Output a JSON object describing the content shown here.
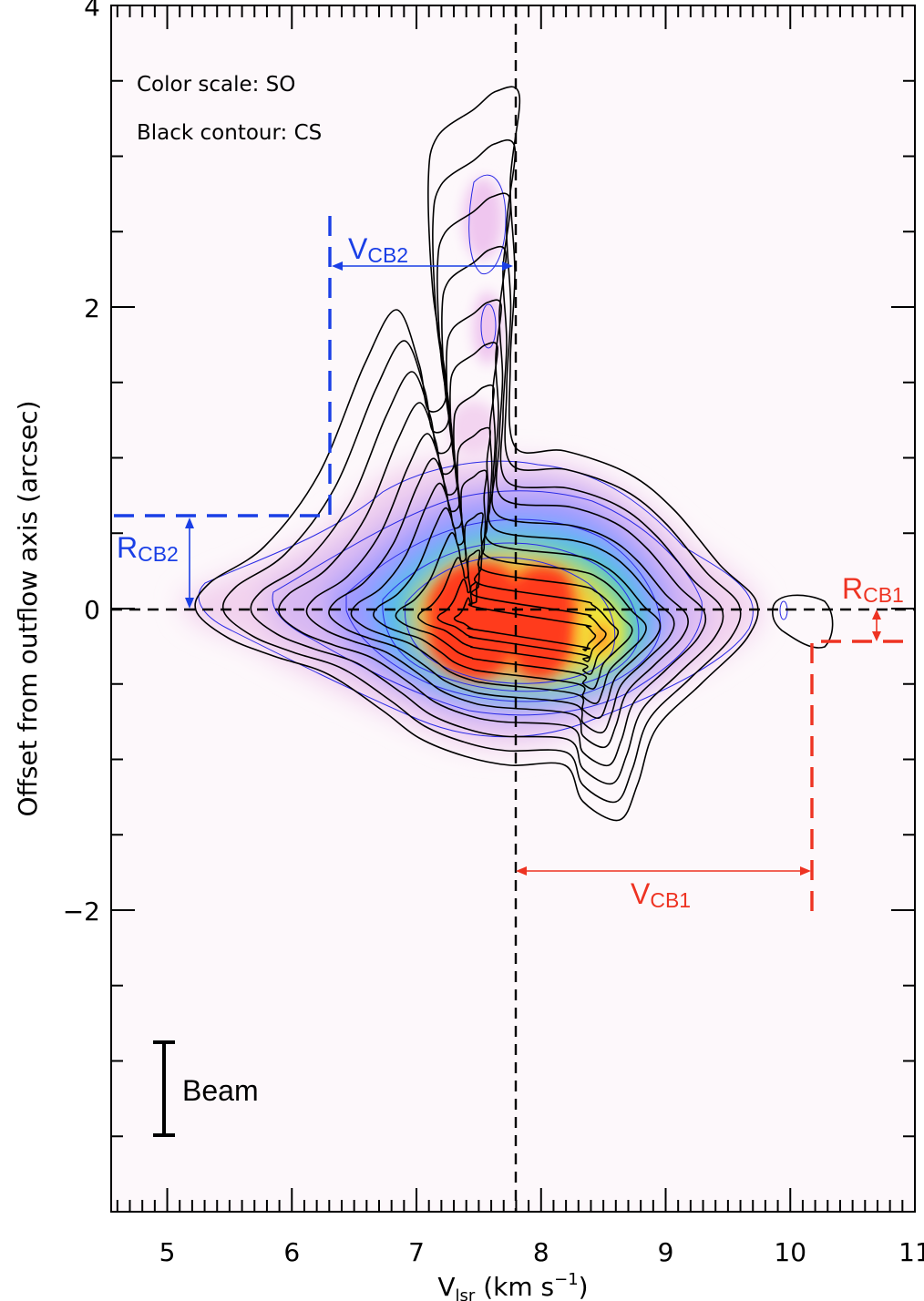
{
  "chart_data": {
    "type": "position-velocity diagram (color map with contours)",
    "xlabel": "V",
    "xlabel_sub": "lsr",
    "xlabel_unit_pre": "(km s",
    "xlabel_unit_sup": "−1",
    "xlabel_unit_post": ")",
    "ylabel": "Offset from outflow axis (arcsec)",
    "xlim": [
      4.55,
      11.0
    ],
    "ylim": [
      -4.0,
      4.0
    ],
    "x_major_ticks": [
      5,
      6,
      7,
      8,
      9,
      10,
      11
    ],
    "x_tick_labels": [
      "5",
      "6",
      "7",
      "8",
      "9",
      "10",
      "11"
    ],
    "y_major_ticks": [
      -2,
      0,
      2,
      4
    ],
    "y_tick_labels": [
      "−2",
      "0",
      "2",
      "4"
    ],
    "legend_notes": [
      "Color scale: SO",
      "Black contour: CS"
    ],
    "reference_lines": {
      "systemic_velocity": 7.82,
      "outflow_axis_offset": 0.0
    },
    "annotations": {
      "VCB2": {
        "label": "V",
        "sub": "CB2",
        "x_from": 6.33,
        "x_to": 7.82,
        "y": 2.3,
        "color": "#1a3fe6"
      },
      "RCB2": {
        "label": "R",
        "sub": "CB2",
        "offset_from": 0.0,
        "offset_to": 0.62,
        "x": 5.2,
        "color": "#1a3fe6"
      },
      "VCB1": {
        "label": "V",
        "sub": "CB1",
        "x_from": 7.82,
        "x_to": 10.2,
        "y": -1.72,
        "color": "#ee3322"
      },
      "RCB1": {
        "label": "R",
        "sub": "CB1",
        "offset_from": 0.0,
        "offset_to": -0.2,
        "x": 10.72,
        "color": "#ee3322"
      }
    },
    "blue_dashed_marker": {
      "velocity": 6.33,
      "offset_top": 2.6,
      "offset_corner": 0.62,
      "vel_start": 4.6
    },
    "red_dashed_marker": {
      "velocity": 10.2,
      "offset_bottom": -2.0,
      "offset_corner": -0.2,
      "vel_end": 11.0
    },
    "beam": {
      "label": "Beam",
      "x": 4.97,
      "offset_from": -3.47,
      "offset_to": -2.83
    },
    "so_emission_peaks": [
      {
        "x": 7.45,
        "y": 0.05,
        "level": 1.0
      },
      {
        "x": 8.0,
        "y": -0.05,
        "level": 1.0
      },
      {
        "x": 8.55,
        "y": -0.2,
        "level": 0.6
      }
    ],
    "colors": {
      "colormap": [
        "#fdf8fb",
        "#f6d6ef",
        "#e9b0ea",
        "#b8a6ff",
        "#7a88ff",
        "#3fb8ff",
        "#26d6c8",
        "#3ed66e",
        "#a8e23a",
        "#f0ea3a",
        "#ff9f2a",
        "#ff3a1e"
      ],
      "cs_contour": "#000000",
      "so_contour": "#2a2ae6"
    }
  }
}
